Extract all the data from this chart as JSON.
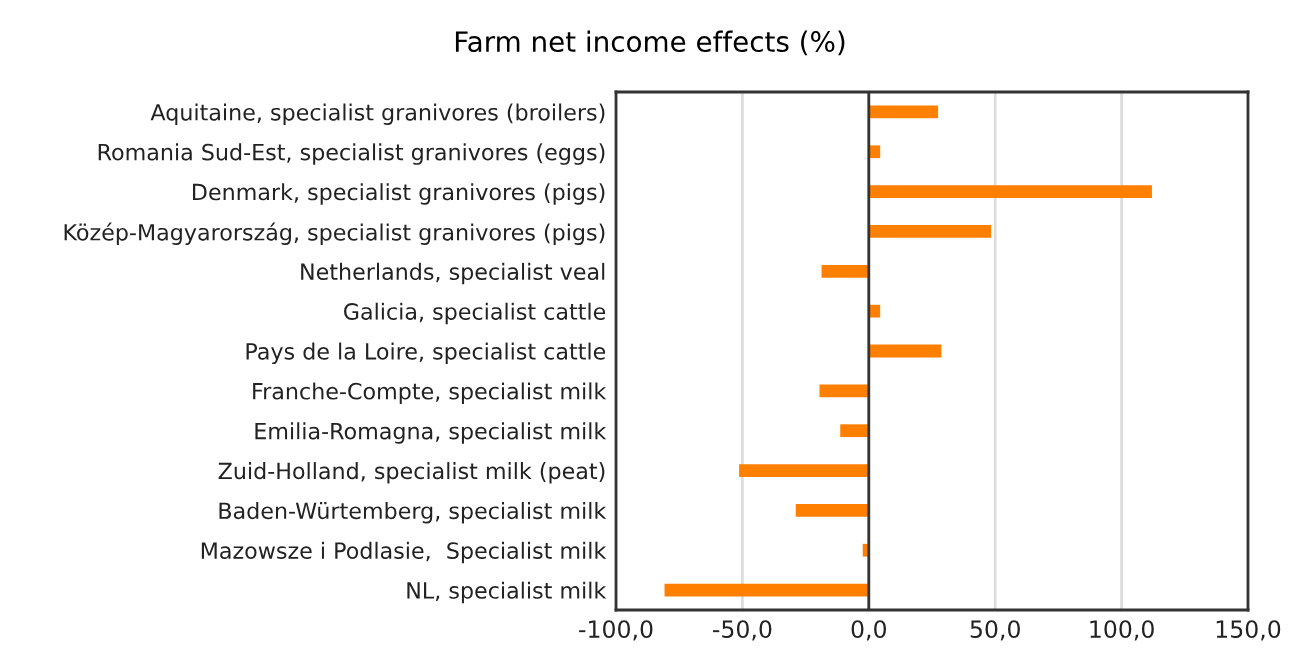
{
  "chart_data": {
    "type": "bar",
    "orientation": "horizontal",
    "title": "Farm net income effects (%)",
    "categories": [
      "Aquitaine, specialist granivores (broilers)",
      "Romania Sud-Est, specialist granivores (eggs)",
      "Denmark, specialist granivores (pigs)",
      "Közép-Magyarország, specialist granivores (pigs)",
      "Netherlands, specialist veal",
      "Galicia, specialist cattle",
      "Pays de la Loire, specialist cattle",
      "Franche-Compte, specialist milk",
      "Emilia-Romagna, specialist milk",
      "Zuid-Holland, specialist milk (peat)",
      "Baden-Würtemberg, specialist milk",
      "Mazowsze i Podlasie,  Specialist milk",
      "NL, specialist milk"
    ],
    "values": [
      27.4,
      4.5,
      112,
      48.4,
      -18.7,
      4.5,
      28.7,
      -19.5,
      -11.3,
      -51.3,
      -28.9,
      -2.4,
      -80.8
    ],
    "color": "#ff7f00",
    "xlim": [
      -100,
      150
    ],
    "xticks": [
      {
        "value": -100,
        "label": "-100,0"
      },
      {
        "value": -50,
        "label": "-50,0"
      },
      {
        "value": 0,
        "label": "0,0"
      },
      {
        "value": 50,
        "label": "50,0"
      },
      {
        "value": 100,
        "label": "100,0"
      },
      {
        "value": 150,
        "label": "150,0"
      }
    ],
    "grid": "x"
  }
}
